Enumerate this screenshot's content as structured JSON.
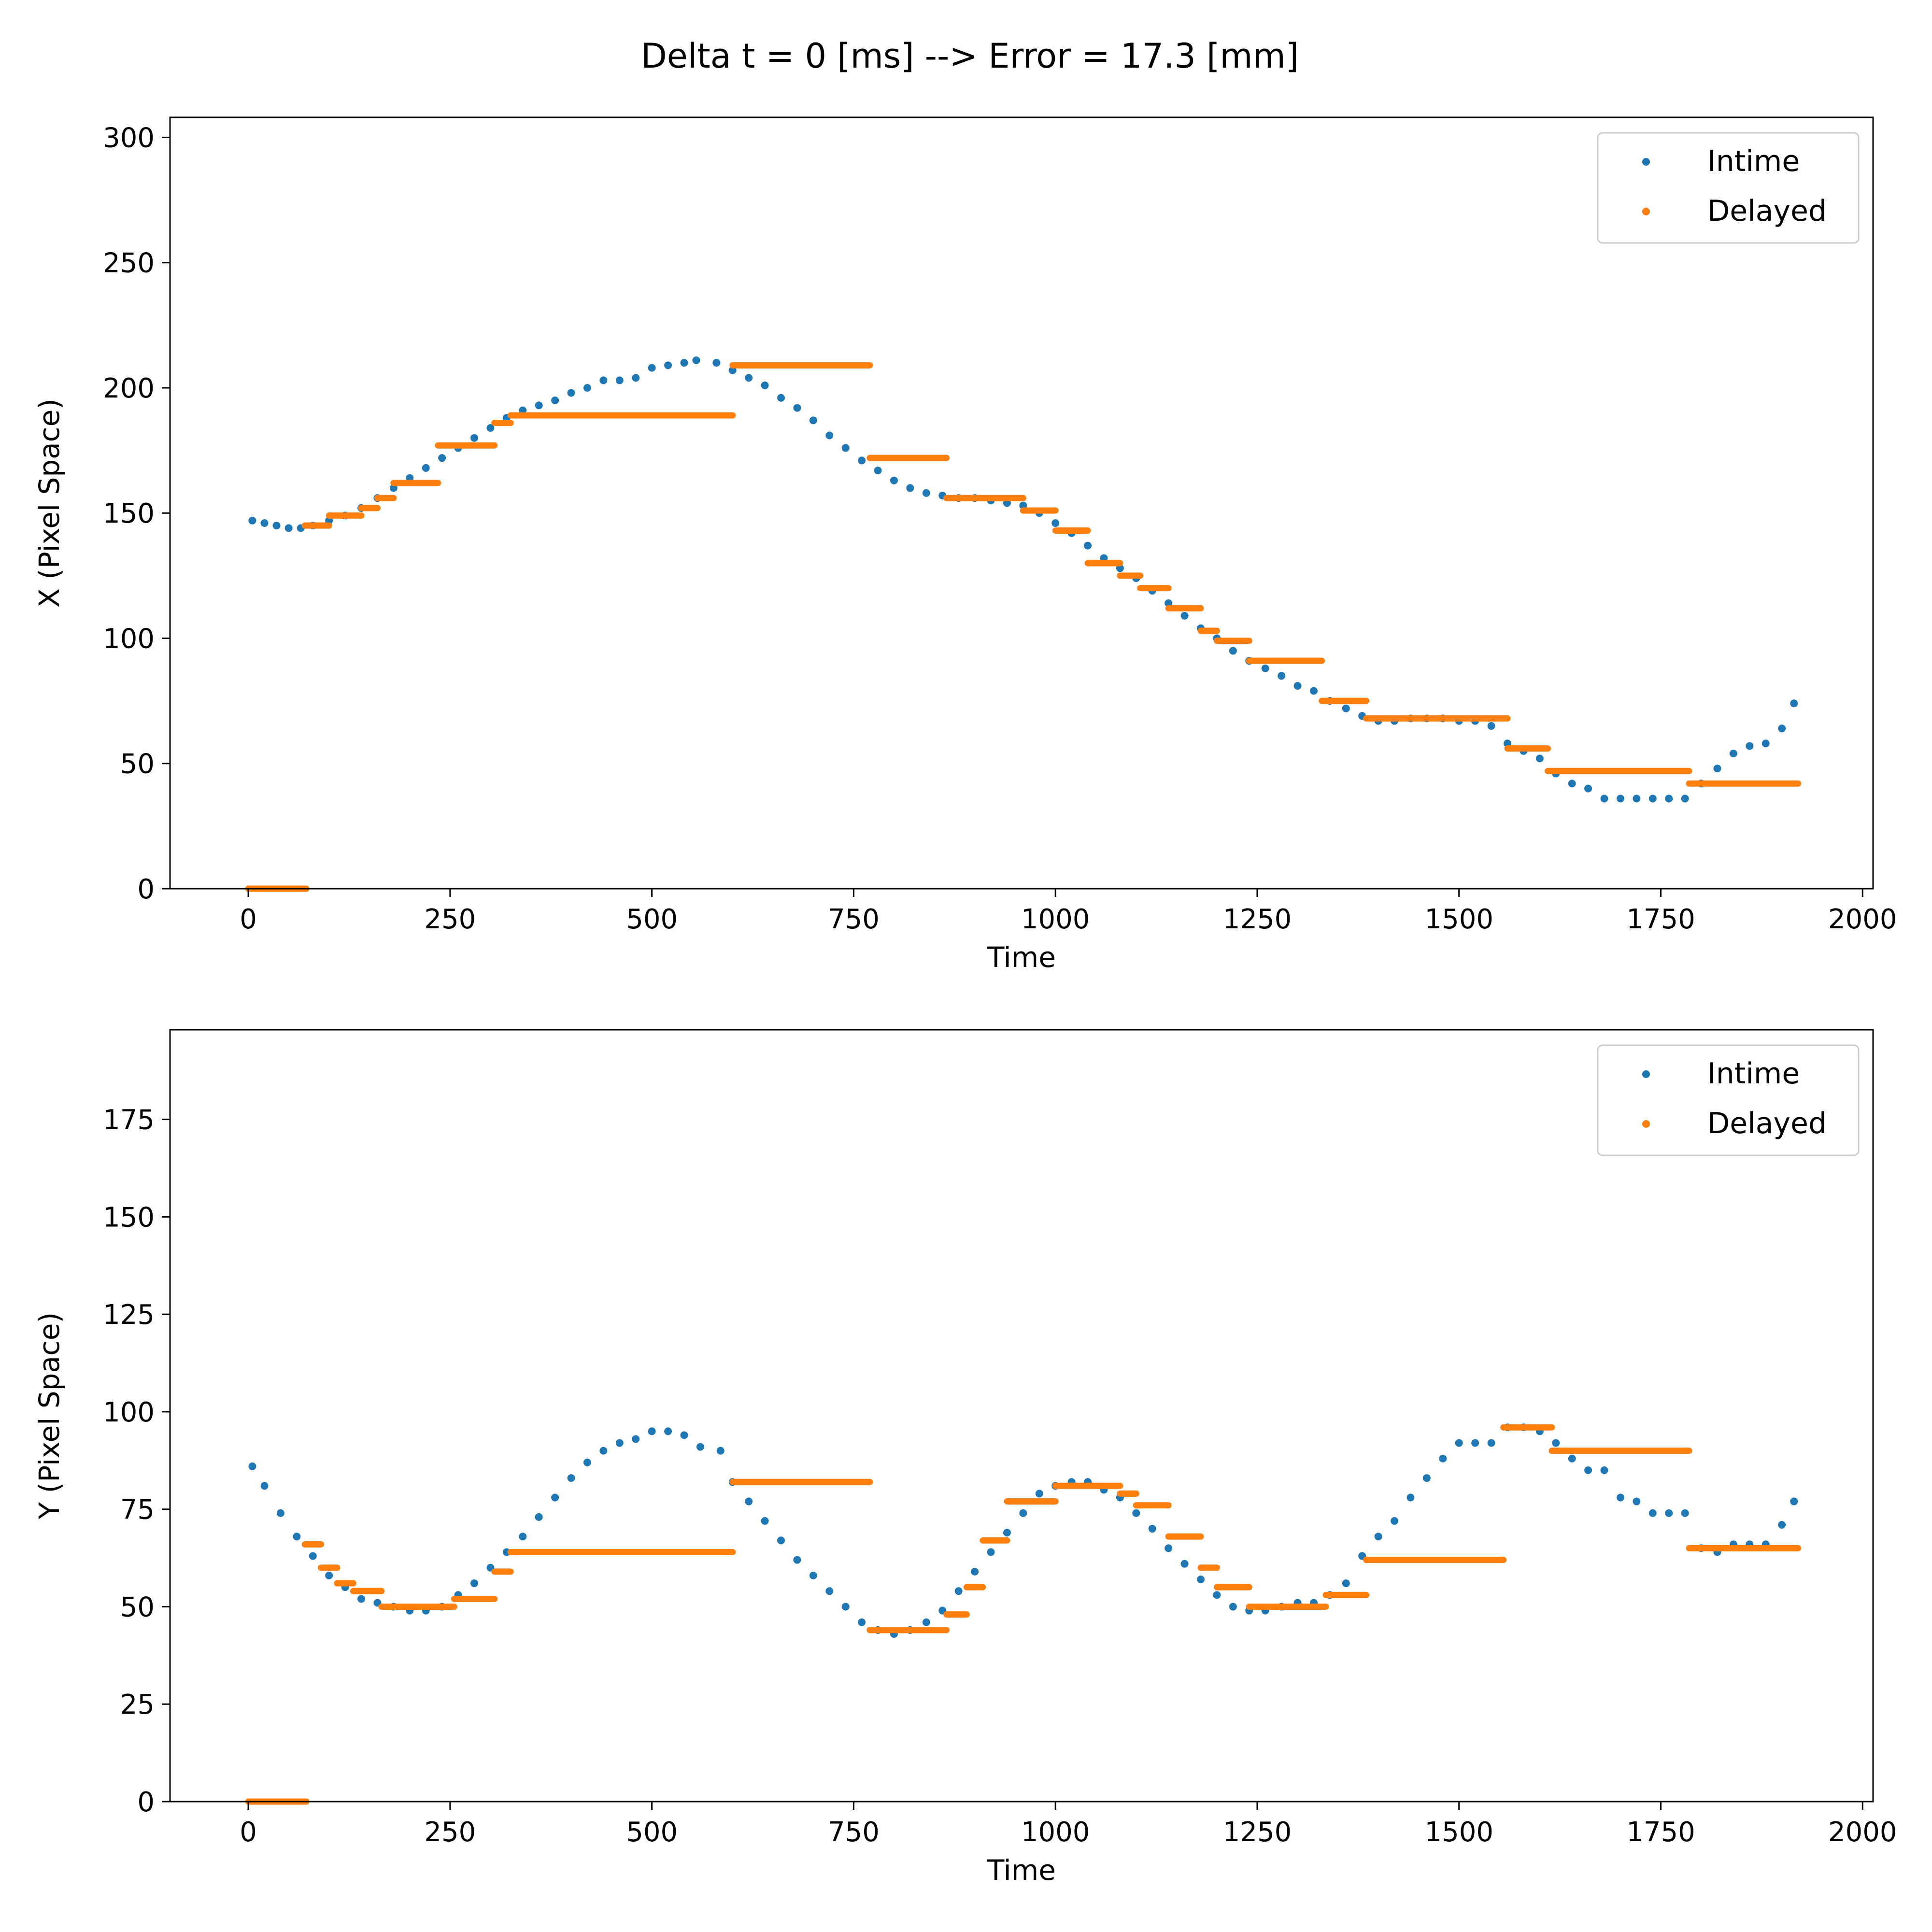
{
  "figure_title": "Delta t = 0 [ms] --> Error = 17.3 [mm]",
  "colors": {
    "intime": "#1f77b4",
    "delayed": "#ff7f0e"
  },
  "chart_data": [
    {
      "type": "scatter",
      "xlabel": "Time",
      "ylabel": "X (Pixel Space)",
      "xlim": [
        -97,
        2013
      ],
      "ylim": [
        0,
        308
      ],
      "xticks": [
        "0",
        "250",
        "500",
        "750",
        "1000",
        "1250",
        "1500",
        "1750",
        "2000"
      ],
      "yticks": [
        "0",
        "50",
        "100",
        "150",
        "200",
        "250",
        "300"
      ],
      "legend": {
        "position": "upper right",
        "entries": [
          "Intime",
          "Delayed"
        ]
      },
      "series": [
        {
          "name": "Intime",
          "color": "#1f77b4",
          "points": [
            [
              5,
              147
            ],
            [
              20,
              146
            ],
            [
              35,
              145
            ],
            [
              50,
              144
            ],
            [
              65,
              144
            ],
            [
              80,
              145
            ],
            [
              100,
              147
            ],
            [
              120,
              149
            ],
            [
              140,
              152
            ],
            [
              160,
              156
            ],
            [
              180,
              160
            ],
            [
              200,
              164
            ],
            [
              220,
              168
            ],
            [
              240,
              172
            ],
            [
              260,
              176
            ],
            [
              280,
              180
            ],
            [
              300,
              184
            ],
            [
              320,
              188
            ],
            [
              340,
              191
            ],
            [
              360,
              193
            ],
            [
              380,
              195
            ],
            [
              400,
              198
            ],
            [
              420,
              200
            ],
            [
              440,
              203
            ],
            [
              460,
              203
            ],
            [
              480,
              204
            ],
            [
              500,
              208
            ],
            [
              520,
              209
            ],
            [
              540,
              210
            ],
            [
              555,
              211
            ],
            [
              580,
              210
            ],
            [
              600,
              207
            ],
            [
              620,
              204
            ],
            [
              640,
              201
            ],
            [
              660,
              196
            ],
            [
              680,
              192
            ],
            [
              700,
              187
            ],
            [
              720,
              181
            ],
            [
              740,
              176
            ],
            [
              760,
              171
            ],
            [
              780,
              167
            ],
            [
              800,
              163
            ],
            [
              820,
              160
            ],
            [
              840,
              158
            ],
            [
              860,
              157
            ],
            [
              880,
              156
            ],
            [
              900,
              156
            ],
            [
              920,
              155
            ],
            [
              940,
              154
            ],
            [
              960,
              153
            ],
            [
              980,
              150
            ],
            [
              1000,
              146
            ],
            [
              1020,
              142
            ],
            [
              1040,
              137
            ],
            [
              1060,
              132
            ],
            [
              1080,
              128
            ],
            [
              1100,
              124
            ],
            [
              1120,
              119
            ],
            [
              1140,
              114
            ],
            [
              1160,
              109
            ],
            [
              1180,
              104
            ],
            [
              1200,
              100
            ],
            [
              1220,
              95
            ],
            [
              1240,
              91
            ],
            [
              1260,
              88
            ],
            [
              1280,
              85
            ],
            [
              1300,
              81
            ],
            [
              1320,
              79
            ],
            [
              1340,
              75
            ],
            [
              1360,
              72
            ],
            [
              1380,
              69
            ],
            [
              1400,
              67
            ],
            [
              1420,
              67
            ],
            [
              1440,
              68
            ],
            [
              1460,
              68
            ],
            [
              1480,
              68
            ],
            [
              1500,
              67
            ],
            [
              1520,
              67
            ],
            [
              1540,
              65
            ],
            [
              1560,
              58
            ],
            [
              1580,
              55
            ],
            [
              1600,
              52
            ],
            [
              1620,
              46
            ],
            [
              1640,
              42
            ],
            [
              1660,
              40
            ],
            [
              1680,
              36
            ],
            [
              1700,
              36
            ],
            [
              1720,
              36
            ],
            [
              1740,
              36
            ],
            [
              1760,
              36
            ],
            [
              1780,
              36
            ],
            [
              1800,
              42
            ],
            [
              1820,
              48
            ],
            [
              1840,
              54
            ],
            [
              1860,
              57
            ],
            [
              1880,
              58
            ],
            [
              1900,
              64
            ],
            [
              1915,
              74
            ]
          ]
        },
        {
          "name": "Delayed",
          "color": "#ff7f0e",
          "steps": [
            [
              0,
              72,
              0
            ],
            [
              70,
              100,
              145
            ],
            [
              100,
              140,
              149
            ],
            [
              140,
              160,
              152
            ],
            [
              160,
              180,
              156
            ],
            [
              180,
              235,
              162
            ],
            [
              235,
              305,
              177
            ],
            [
              305,
              325,
              186
            ],
            [
              325,
              600,
              189
            ],
            [
              600,
              770,
              209
            ],
            [
              770,
              865,
              172
            ],
            [
              865,
              960,
              156
            ],
            [
              960,
              1000,
              151
            ],
            [
              1000,
              1040,
              143
            ],
            [
              1040,
              1080,
              130
            ],
            [
              1080,
              1105,
              125
            ],
            [
              1105,
              1140,
              120
            ],
            [
              1140,
              1180,
              112
            ],
            [
              1180,
              1200,
              103
            ],
            [
              1200,
              1240,
              99
            ],
            [
              1240,
              1330,
              91
            ],
            [
              1330,
              1385,
              75
            ],
            [
              1385,
              1560,
              68
            ],
            [
              1560,
              1610,
              56
            ],
            [
              1610,
              1785,
              47
            ],
            [
              1785,
              1920,
              42
            ]
          ]
        }
      ]
    },
    {
      "type": "scatter",
      "xlabel": "Time",
      "ylabel": "Y (Pixel Space)",
      "xlim": [
        -97,
        2013
      ],
      "ylim": [
        0,
        198
      ],
      "xticks": [
        "0",
        "250",
        "500",
        "750",
        "1000",
        "1250",
        "1500",
        "1750",
        "2000"
      ],
      "yticks": [
        "0",
        "25",
        "50",
        "75",
        "100",
        "125",
        "150",
        "175"
      ],
      "legend": {
        "position": "upper right",
        "entries": [
          "Intime",
          "Delayed"
        ]
      },
      "series": [
        {
          "name": "Intime",
          "color": "#1f77b4",
          "points": [
            [
              5,
              86
            ],
            [
              20,
              81
            ],
            [
              40,
              74
            ],
            [
              60,
              68
            ],
            [
              80,
              63
            ],
            [
              100,
              58
            ],
            [
              120,
              55
            ],
            [
              140,
              52
            ],
            [
              160,
              51
            ],
            [
              180,
              50
            ],
            [
              200,
              49
            ],
            [
              220,
              49
            ],
            [
              240,
              50
            ],
            [
              260,
              53
            ],
            [
              280,
              56
            ],
            [
              300,
              60
            ],
            [
              320,
              64
            ],
            [
              340,
              68
            ],
            [
              360,
              73
            ],
            [
              380,
              78
            ],
            [
              400,
              83
            ],
            [
              420,
              87
            ],
            [
              440,
              90
            ],
            [
              460,
              92
            ],
            [
              480,
              93
            ],
            [
              500,
              95
            ],
            [
              520,
              95
            ],
            [
              540,
              94
            ],
            [
              560,
              91
            ],
            [
              585,
              90
            ],
            [
              600,
              82
            ],
            [
              620,
              77
            ],
            [
              640,
              72
            ],
            [
              660,
              67
            ],
            [
              680,
              62
            ],
            [
              700,
              58
            ],
            [
              720,
              54
            ],
            [
              740,
              50
            ],
            [
              760,
              46
            ],
            [
              780,
              44
            ],
            [
              800,
              43
            ],
            [
              820,
              44
            ],
            [
              840,
              46
            ],
            [
              860,
              49
            ],
            [
              880,
              54
            ],
            [
              900,
              59
            ],
            [
              920,
              64
            ],
            [
              940,
              69
            ],
            [
              960,
              74
            ],
            [
              980,
              79
            ],
            [
              1000,
              81
            ],
            [
              1020,
              82
            ],
            [
              1040,
              82
            ],
            [
              1060,
              80
            ],
            [
              1080,
              78
            ],
            [
              1100,
              74
            ],
            [
              1120,
              70
            ],
            [
              1140,
              65
            ],
            [
              1160,
              61
            ],
            [
              1180,
              57
            ],
            [
              1200,
              53
            ],
            [
              1220,
              50
            ],
            [
              1240,
              49
            ],
            [
              1260,
              49
            ],
            [
              1280,
              50
            ],
            [
              1300,
              51
            ],
            [
              1320,
              51
            ],
            [
              1340,
              53
            ],
            [
              1360,
              56
            ],
            [
              1380,
              63
            ],
            [
              1400,
              68
            ],
            [
              1420,
              72
            ],
            [
              1440,
              78
            ],
            [
              1460,
              83
            ],
            [
              1480,
              88
            ],
            [
              1500,
              92
            ],
            [
              1520,
              92
            ],
            [
              1540,
              92
            ],
            [
              1560,
              96
            ],
            [
              1580,
              96
            ],
            [
              1600,
              95
            ],
            [
              1620,
              92
            ],
            [
              1640,
              88
            ],
            [
              1660,
              85
            ],
            [
              1680,
              85
            ],
            [
              1700,
              78
            ],
            [
              1720,
              77
            ],
            [
              1740,
              74
            ],
            [
              1760,
              74
            ],
            [
              1780,
              74
            ],
            [
              1800,
              65
            ],
            [
              1820,
              64
            ],
            [
              1840,
              66
            ],
            [
              1860,
              66
            ],
            [
              1880,
              66
            ],
            [
              1900,
              71
            ],
            [
              1915,
              77
            ]
          ]
        },
        {
          "name": "Delayed",
          "color": "#ff7f0e",
          "steps": [
            [
              0,
              72,
              0
            ],
            [
              70,
              90,
              66
            ],
            [
              90,
              110,
              60
            ],
            [
              110,
              130,
              56
            ],
            [
              130,
              165,
              54
            ],
            [
              165,
              235,
              50
            ],
            [
              235,
              255,
              50
            ],
            [
              255,
              305,
              52
            ],
            [
              305,
              325,
              59
            ],
            [
              325,
              600,
              64
            ],
            [
              600,
              770,
              82
            ],
            [
              770,
              865,
              44
            ],
            [
              865,
              890,
              48
            ],
            [
              890,
              910,
              55
            ],
            [
              910,
              940,
              67
            ],
            [
              940,
              1000,
              77
            ],
            [
              1000,
              1080,
              81
            ],
            [
              1080,
              1100,
              79
            ],
            [
              1100,
              1140,
              76
            ],
            [
              1140,
              1180,
              68
            ],
            [
              1180,
              1200,
              60
            ],
            [
              1200,
              1240,
              55
            ],
            [
              1240,
              1335,
              50
            ],
            [
              1335,
              1385,
              53
            ],
            [
              1385,
              1555,
              62
            ],
            [
              1555,
              1615,
              96
            ],
            [
              1615,
              1785,
              90
            ],
            [
              1785,
              1920,
              65
            ]
          ]
        }
      ]
    }
  ]
}
